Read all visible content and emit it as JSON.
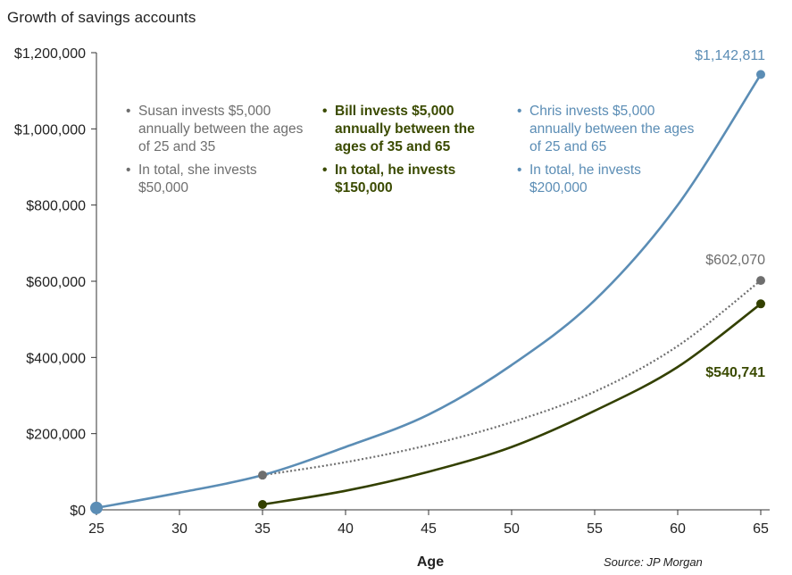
{
  "title": "Growth of savings accounts",
  "source": "Source: JP Morgan",
  "colors": {
    "chris": "#5b8db5",
    "susan": "#6e6e6e",
    "bill": "#334000",
    "axis": "#333333",
    "grid": "#bbbbbb"
  },
  "legend": {
    "susan": {
      "line1": "Susan invests $5,000 annually between the ages of 25 and 35",
      "line2": "In total, she invests $50,000"
    },
    "bill": {
      "line1": "Bill invests $5,000 annually between the ages of 35 and 65",
      "line2": "In total, he invests $150,000"
    },
    "chris": {
      "line1": "Chris invests $5,000 annually between the ages of 25 and 65",
      "line2": "In total, he invests $200,000"
    }
  },
  "chart_data": {
    "type": "line",
    "xlabel": "Age",
    "ylabel": "",
    "xlim": [
      25,
      65
    ],
    "ylim": [
      0,
      1200000
    ],
    "xticks": [
      25,
      30,
      35,
      40,
      45,
      50,
      55,
      60,
      65
    ],
    "xtick_labels": [
      "25",
      "30",
      "35",
      "40",
      "45",
      "50",
      "55",
      "60",
      "65"
    ],
    "yticks": [
      0,
      200000,
      400000,
      600000,
      800000,
      1000000,
      1200000
    ],
    "ytick_labels": [
      "$0",
      "$200,000",
      "$400,000",
      "$600,000",
      "$800,000",
      "$1,000,000",
      "$1,200,000"
    ],
    "grid": false,
    "series": [
      {
        "name": "Chris",
        "style": "solid",
        "x": [
          25,
          30,
          35,
          40,
          45,
          50,
          55,
          60,
          65
        ],
        "y": [
          5000,
          45000,
          91000,
          165000,
          250000,
          380000,
          550000,
          800000,
          1142811
        ],
        "end_label": "$1,142,811"
      },
      {
        "name": "Susan",
        "style": "dotted",
        "x": [
          25,
          30,
          35,
          40,
          45,
          50,
          55,
          60,
          65
        ],
        "y": [
          5000,
          45000,
          91000,
          125000,
          170000,
          230000,
          310000,
          430000,
          602070
        ],
        "end_label": "$602,070"
      },
      {
        "name": "Bill",
        "style": "solid",
        "x": [
          35,
          40,
          45,
          50,
          55,
          60,
          65
        ],
        "y": [
          14000,
          50000,
          100000,
          165000,
          260000,
          375000,
          540741
        ],
        "end_label": "$540,741"
      }
    ]
  }
}
